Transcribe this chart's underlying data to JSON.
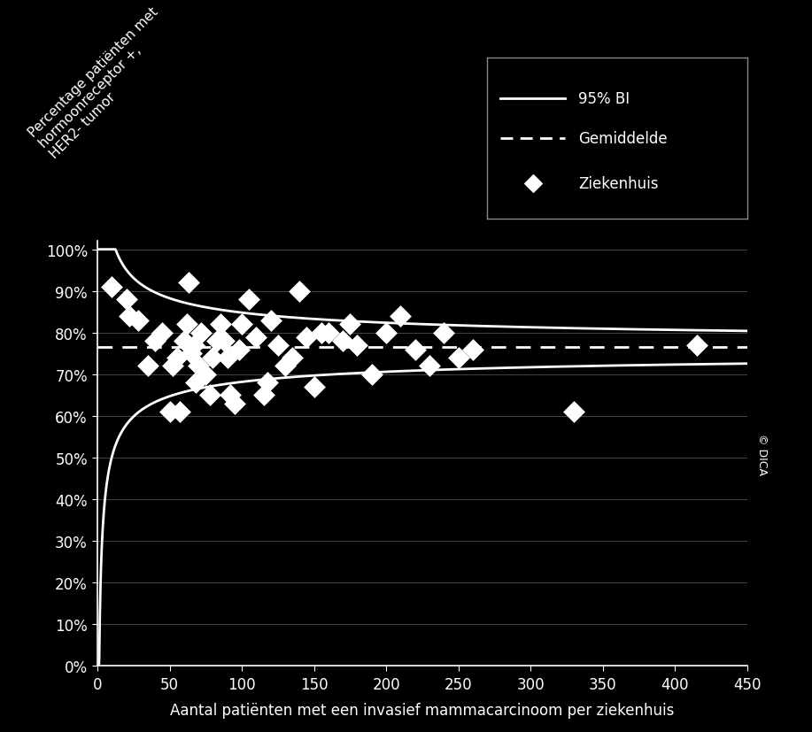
{
  "background_color": "#000000",
  "text_color": "#ffffff",
  "ylabel_lines": [
    "Percentage patiënten met",
    "hormoonreceptor +,",
    "HER2- tumor"
  ],
  "xlabel": "Aantal patiënten met een invasief mammacarcinoom per ziekenhuis",
  "mean_value": 0.765,
  "xlim": [
    0,
    450
  ],
  "ylim": [
    0.0,
    1.02
  ],
  "yticks": [
    0.0,
    0.1,
    0.2,
    0.3,
    0.4,
    0.5,
    0.6,
    0.7,
    0.8,
    0.9,
    1.0
  ],
  "xticks": [
    0,
    50,
    100,
    150,
    200,
    250,
    300,
    350,
    400,
    450
  ],
  "scatter_x": [
    10,
    20,
    22,
    28,
    35,
    40,
    45,
    50,
    52,
    55,
    57,
    60,
    62,
    63,
    65,
    67,
    68,
    70,
    72,
    75,
    78,
    80,
    83,
    85,
    88,
    90,
    92,
    95,
    98,
    100,
    105,
    110,
    115,
    118,
    120,
    125,
    130,
    135,
    140,
    145,
    150,
    155,
    160,
    170,
    175,
    180,
    190,
    200,
    210,
    220,
    230,
    240,
    250,
    260,
    330,
    415
  ],
  "scatter_y": [
    0.91,
    0.88,
    0.84,
    0.83,
    0.72,
    0.78,
    0.8,
    0.61,
    0.72,
    0.74,
    0.61,
    0.78,
    0.82,
    0.92,
    0.75,
    0.77,
    0.68,
    0.72,
    0.8,
    0.7,
    0.65,
    0.74,
    0.78,
    0.82,
    0.78,
    0.74,
    0.65,
    0.63,
    0.76,
    0.82,
    0.88,
    0.79,
    0.65,
    0.68,
    0.83,
    0.77,
    0.72,
    0.74,
    0.9,
    0.79,
    0.67,
    0.8,
    0.8,
    0.78,
    0.82,
    0.77,
    0.7,
    0.8,
    0.84,
    0.76,
    0.72,
    0.8,
    0.74,
    0.76,
    0.61,
    0.77
  ],
  "ci_line_color": "#ffffff",
  "mean_line_color": "#ffffff",
  "scatter_color": "#ffffff",
  "grid_color": "#444444",
  "legend_border_color": "#888888",
  "copyright_text": "© DICA",
  "font_size": 12,
  "marker_size": 160
}
